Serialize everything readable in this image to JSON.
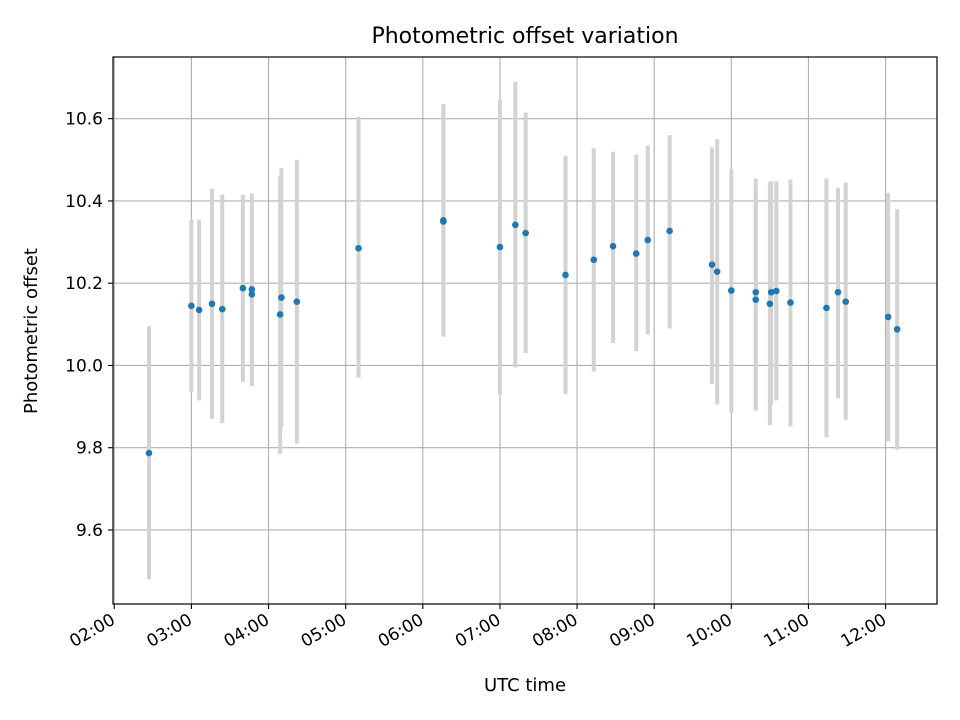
{
  "colors": {
    "point": "#1f77b4",
    "errorbar": "#d3d3d3",
    "grid": "#b0b0b0",
    "axes": "#000000"
  },
  "chart_data": {
    "type": "scatter",
    "title": "Photometric offset variation",
    "xlabel": "UTC time",
    "ylabel": "Photometric offset",
    "grid": true,
    "xlim": [
      "01:59",
      "12:40"
    ],
    "ylim": [
      9.42,
      10.75
    ],
    "x_ticks": [
      "02:00",
      "03:00",
      "04:00",
      "05:00",
      "06:00",
      "07:00",
      "08:00",
      "09:00",
      "10:00",
      "11:00",
      "12:00"
    ],
    "y_ticks": [
      "9.6",
      "9.8",
      "10.0",
      "10.2",
      "10.4",
      "10.6"
    ],
    "points": [
      {
        "x": "02:27",
        "y": 9.787,
        "err_low": 9.48,
        "err_high": 10.095
      },
      {
        "x": "03:00",
        "y": 10.145,
        "err_low": 9.935,
        "err_high": 10.355
      },
      {
        "x": "03:06",
        "y": 10.135,
        "err_low": 9.915,
        "err_high": 10.355
      },
      {
        "x": "03:16",
        "y": 10.15,
        "err_low": 9.87,
        "err_high": 10.43
      },
      {
        "x": "03:24",
        "y": 10.137,
        "err_low": 9.86,
        "err_high": 10.415
      },
      {
        "x": "03:40",
        "y": 10.188,
        "err_low": 9.96,
        "err_high": 10.415
      },
      {
        "x": "03:47",
        "y": 10.185,
        "err_low": 9.952,
        "err_high": 10.418
      },
      {
        "x": "03:47",
        "y": 10.173,
        "err_low": 9.95,
        "err_high": 10.39
      },
      {
        "x": "04:09",
        "y": 10.124,
        "err_low": 9.785,
        "err_high": 10.46
      },
      {
        "x": "04:10",
        "y": 10.165,
        "err_low": 9.85,
        "err_high": 10.48
      },
      {
        "x": "04:22",
        "y": 10.155,
        "err_low": 9.81,
        "err_high": 10.5
      },
      {
        "x": "05:10",
        "y": 10.285,
        "err_low": 9.97,
        "err_high": 10.605
      },
      {
        "x": "06:16",
        "y": 10.35,
        "err_low": 10.07,
        "err_high": 10.635
      },
      {
        "x": "06:16",
        "y": 10.353,
        "err_low": 10.07,
        "err_high": 10.635
      },
      {
        "x": "07:00",
        "y": 10.288,
        "err_low": 9.93,
        "err_high": 10.645
      },
      {
        "x": "07:12",
        "y": 10.342,
        "err_low": 9.995,
        "err_high": 10.69
      },
      {
        "x": "07:20",
        "y": 10.322,
        "err_low": 10.03,
        "err_high": 10.615
      },
      {
        "x": "07:51",
        "y": 10.22,
        "err_low": 9.93,
        "err_high": 10.51
      },
      {
        "x": "08:13",
        "y": 10.257,
        "err_low": 9.985,
        "err_high": 10.528
      },
      {
        "x": "08:28",
        "y": 10.29,
        "err_low": 10.055,
        "err_high": 10.52
      },
      {
        "x": "08:46",
        "y": 10.272,
        "err_low": 10.035,
        "err_high": 10.512
      },
      {
        "x": "08:55",
        "y": 10.305,
        "err_low": 10.075,
        "err_high": 10.535
      },
      {
        "x": "09:12",
        "y": 10.327,
        "err_low": 10.09,
        "err_high": 10.56
      },
      {
        "x": "09:45",
        "y": 10.245,
        "err_low": 9.955,
        "err_high": 10.53
      },
      {
        "x": "09:49",
        "y": 10.228,
        "err_low": 9.905,
        "err_high": 10.55
      },
      {
        "x": "10:00",
        "y": 10.182,
        "err_low": 9.885,
        "err_high": 10.478
      },
      {
        "x": "10:19",
        "y": 10.178,
        "err_low": 9.89,
        "err_high": 10.455
      },
      {
        "x": "10:19",
        "y": 10.16,
        "err_low": 9.895,
        "err_high": 10.425
      },
      {
        "x": "10:30",
        "y": 10.15,
        "err_low": 9.855,
        "err_high": 10.445
      },
      {
        "x": "10:31",
        "y": 10.178,
        "err_low": 9.905,
        "err_high": 10.448
      },
      {
        "x": "10:35",
        "y": 10.181,
        "err_low": 9.915,
        "err_high": 10.448
      },
      {
        "x": "10:46",
        "y": 10.153,
        "err_low": 9.852,
        "err_high": 10.452
      },
      {
        "x": "11:14",
        "y": 10.14,
        "err_low": 9.825,
        "err_high": 10.455
      },
      {
        "x": "11:23",
        "y": 10.178,
        "err_low": 9.92,
        "err_high": 10.432
      },
      {
        "x": "11:29",
        "y": 10.155,
        "err_low": 9.868,
        "err_high": 10.445
      },
      {
        "x": "12:02",
        "y": 10.118,
        "err_low": 9.815,
        "err_high": 10.42
      },
      {
        "x": "12:09",
        "y": 10.088,
        "err_low": 9.795,
        "err_high": 10.38
      }
    ]
  }
}
